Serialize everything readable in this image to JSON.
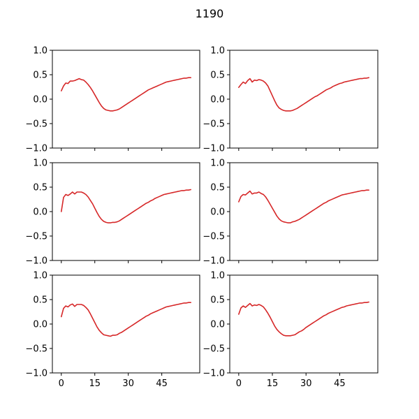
{
  "figure": {
    "title": "1190"
  },
  "chart_data": [
    {
      "type": "line",
      "xlim": [
        -4,
        62
      ],
      "ylim": [
        -1.0,
        1.0
      ],
      "xticks": [
        0,
        15,
        30,
        45
      ],
      "yticks": [
        -1.0,
        -0.5,
        0.0,
        0.5,
        1.0
      ],
      "xtick_labels": [
        "0",
        "15",
        "30",
        "45"
      ],
      "ytick_labels": [
        "−1.0",
        "−0.5",
        "0.0",
        "0.5",
        "1.0"
      ],
      "show_xtick_labels": false,
      "show_ytick_labels": true,
      "color": "#d62728",
      "x": [
        0,
        1,
        2,
        3,
        4,
        5,
        6,
        7,
        8,
        9,
        10,
        11,
        12,
        13,
        14,
        15,
        16,
        17,
        18,
        19,
        20,
        21,
        22,
        23,
        24,
        25,
        26,
        27,
        28,
        29,
        30,
        31,
        32,
        33,
        34,
        35,
        36,
        37,
        38,
        39,
        40,
        41,
        42,
        43,
        44,
        45,
        46,
        47,
        48,
        49,
        50,
        51,
        52,
        53,
        54,
        55,
        56,
        57,
        58
      ],
      "y": [
        0.17,
        0.27,
        0.33,
        0.32,
        0.37,
        0.37,
        0.38,
        0.4,
        0.42,
        0.4,
        0.39,
        0.35,
        0.3,
        0.24,
        0.17,
        0.09,
        0.01,
        -0.07,
        -0.14,
        -0.19,
        -0.22,
        -0.23,
        -0.24,
        -0.24,
        -0.23,
        -0.22,
        -0.2,
        -0.17,
        -0.14,
        -0.11,
        -0.08,
        -0.05,
        -0.02,
        0.01,
        0.04,
        0.07,
        0.1,
        0.13,
        0.16,
        0.19,
        0.21,
        0.23,
        0.25,
        0.27,
        0.29,
        0.31,
        0.33,
        0.35,
        0.36,
        0.37,
        0.38,
        0.39,
        0.4,
        0.41,
        0.42,
        0.43,
        0.43,
        0.44,
        0.44
      ]
    },
    {
      "type": "line",
      "xlim": [
        -4,
        62
      ],
      "ylim": [
        -1.0,
        1.0
      ],
      "xticks": [
        0,
        15,
        30,
        45
      ],
      "yticks": [
        -1.0,
        -0.5,
        0.0,
        0.5,
        1.0
      ],
      "xtick_labels": [
        "0",
        "15",
        "30",
        "45"
      ],
      "ytick_labels": [
        "−1.0",
        "−0.5",
        "0.0",
        "0.5",
        "1.0"
      ],
      "show_xtick_labels": false,
      "show_ytick_labels": true,
      "color": "#d62728",
      "x": [
        0,
        1,
        2,
        3,
        4,
        5,
        6,
        7,
        8,
        9,
        10,
        11,
        12,
        13,
        14,
        15,
        16,
        17,
        18,
        19,
        20,
        21,
        22,
        23,
        24,
        25,
        26,
        27,
        28,
        29,
        30,
        31,
        32,
        33,
        34,
        35,
        36,
        37,
        38,
        39,
        40,
        41,
        42,
        43,
        44,
        45,
        46,
        47,
        48,
        49,
        50,
        51,
        52,
        53,
        54,
        55,
        56,
        57,
        58
      ],
      "y": [
        0.24,
        0.3,
        0.35,
        0.32,
        0.38,
        0.42,
        0.35,
        0.39,
        0.38,
        0.4,
        0.39,
        0.37,
        0.33,
        0.27,
        0.17,
        0.07,
        -0.03,
        -0.12,
        -0.18,
        -0.21,
        -0.23,
        -0.24,
        -0.24,
        -0.24,
        -0.23,
        -0.21,
        -0.19,
        -0.16,
        -0.13,
        -0.1,
        -0.07,
        -0.04,
        -0.01,
        0.02,
        0.05,
        0.07,
        0.1,
        0.13,
        0.16,
        0.19,
        0.21,
        0.23,
        0.26,
        0.28,
        0.3,
        0.32,
        0.33,
        0.35,
        0.36,
        0.37,
        0.38,
        0.39,
        0.4,
        0.41,
        0.42,
        0.42,
        0.43,
        0.43,
        0.44
      ]
    },
    {
      "type": "line",
      "xlim": [
        -4,
        62
      ],
      "ylim": [
        -1.0,
        1.0
      ],
      "xticks": [
        0,
        15,
        30,
        45
      ],
      "yticks": [
        -1.0,
        -0.5,
        0.0,
        0.5,
        1.0
      ],
      "xtick_labels": [
        "0",
        "15",
        "30",
        "45"
      ],
      "ytick_labels": [
        "−1.0",
        "−0.5",
        "0.0",
        "0.5",
        "1.0"
      ],
      "show_xtick_labels": false,
      "show_ytick_labels": true,
      "color": "#d62728",
      "x": [
        0,
        1,
        2,
        3,
        4,
        5,
        6,
        7,
        8,
        9,
        10,
        11,
        12,
        13,
        14,
        15,
        16,
        17,
        18,
        19,
        20,
        21,
        22,
        23,
        24,
        25,
        26,
        27,
        28,
        29,
        30,
        31,
        32,
        33,
        34,
        35,
        36,
        37,
        38,
        39,
        40,
        41,
        42,
        43,
        44,
        45,
        46,
        47,
        48,
        49,
        50,
        51,
        52,
        53,
        54,
        55,
        56,
        57,
        58
      ],
      "y": [
        0.0,
        0.29,
        0.35,
        0.33,
        0.36,
        0.4,
        0.36,
        0.4,
        0.4,
        0.4,
        0.38,
        0.35,
        0.3,
        0.23,
        0.16,
        0.07,
        -0.02,
        -0.1,
        -0.16,
        -0.2,
        -0.22,
        -0.23,
        -0.23,
        -0.22,
        -0.22,
        -0.21,
        -0.19,
        -0.16,
        -0.13,
        -0.1,
        -0.07,
        -0.04,
        -0.01,
        0.02,
        0.05,
        0.08,
        0.11,
        0.14,
        0.17,
        0.19,
        0.22,
        0.24,
        0.27,
        0.29,
        0.31,
        0.33,
        0.35,
        0.36,
        0.37,
        0.38,
        0.39,
        0.4,
        0.41,
        0.42,
        0.43,
        0.43,
        0.44,
        0.44,
        0.45
      ]
    },
    {
      "type": "line",
      "xlim": [
        -4,
        62
      ],
      "ylim": [
        -1.0,
        1.0
      ],
      "xticks": [
        0,
        15,
        30,
        45
      ],
      "yticks": [
        -1.0,
        -0.5,
        0.0,
        0.5,
        1.0
      ],
      "xtick_labels": [
        "0",
        "15",
        "30",
        "45"
      ],
      "ytick_labels": [
        "−1.0",
        "−0.5",
        "0.0",
        "0.5",
        "1.0"
      ],
      "show_xtick_labels": false,
      "show_ytick_labels": true,
      "color": "#d62728",
      "x": [
        0,
        1,
        2,
        3,
        4,
        5,
        6,
        7,
        8,
        9,
        10,
        11,
        12,
        13,
        14,
        15,
        16,
        17,
        18,
        19,
        20,
        21,
        22,
        23,
        24,
        25,
        26,
        27,
        28,
        29,
        30,
        31,
        32,
        33,
        34,
        35,
        36,
        37,
        38,
        39,
        40,
        41,
        42,
        43,
        44,
        45,
        46,
        47,
        48,
        49,
        50,
        51,
        52,
        53,
        54,
        55,
        56,
        57,
        58
      ],
      "y": [
        0.2,
        0.31,
        0.35,
        0.34,
        0.38,
        0.42,
        0.36,
        0.38,
        0.38,
        0.4,
        0.37,
        0.35,
        0.3,
        0.23,
        0.15,
        0.07,
        -0.01,
        -0.09,
        -0.15,
        -0.19,
        -0.21,
        -0.22,
        -0.23,
        -0.23,
        -0.21,
        -0.2,
        -0.18,
        -0.16,
        -0.13,
        -0.1,
        -0.07,
        -0.04,
        -0.01,
        0.02,
        0.05,
        0.08,
        0.11,
        0.14,
        0.17,
        0.19,
        0.22,
        0.24,
        0.26,
        0.28,
        0.3,
        0.32,
        0.34,
        0.35,
        0.36,
        0.37,
        0.38,
        0.39,
        0.4,
        0.41,
        0.42,
        0.43,
        0.43,
        0.44,
        0.44
      ]
    },
    {
      "type": "line",
      "xlim": [
        -4,
        62
      ],
      "ylim": [
        -1.0,
        1.0
      ],
      "xticks": [
        0,
        15,
        30,
        45
      ],
      "yticks": [
        -1.0,
        -0.5,
        0.0,
        0.5,
        1.0
      ],
      "xtick_labels": [
        "0",
        "15",
        "30",
        "45"
      ],
      "ytick_labels": [
        "−1.0",
        "−0.5",
        "0.0",
        "0.5",
        "1.0"
      ],
      "show_xtick_labels": true,
      "show_ytick_labels": true,
      "color": "#d62728",
      "x": [
        0,
        1,
        2,
        3,
        4,
        5,
        6,
        7,
        8,
        9,
        10,
        11,
        12,
        13,
        14,
        15,
        16,
        17,
        18,
        19,
        20,
        21,
        22,
        23,
        24,
        25,
        26,
        27,
        28,
        29,
        30,
        31,
        32,
        33,
        34,
        35,
        36,
        37,
        38,
        39,
        40,
        41,
        42,
        43,
        44,
        45,
        46,
        47,
        48,
        49,
        50,
        51,
        52,
        53,
        54,
        55,
        56,
        57,
        58
      ],
      "y": [
        0.15,
        0.32,
        0.37,
        0.35,
        0.39,
        0.41,
        0.36,
        0.4,
        0.4,
        0.4,
        0.38,
        0.34,
        0.29,
        0.21,
        0.12,
        0.03,
        -0.06,
        -0.13,
        -0.18,
        -0.22,
        -0.23,
        -0.24,
        -0.25,
        -0.23,
        -0.23,
        -0.22,
        -0.19,
        -0.17,
        -0.14,
        -0.11,
        -0.08,
        -0.05,
        -0.02,
        0.01,
        0.04,
        0.07,
        0.1,
        0.13,
        0.16,
        0.18,
        0.21,
        0.23,
        0.25,
        0.27,
        0.29,
        0.31,
        0.33,
        0.35,
        0.36,
        0.37,
        0.38,
        0.39,
        0.4,
        0.41,
        0.42,
        0.43,
        0.43,
        0.44,
        0.44
      ]
    },
    {
      "type": "line",
      "xlim": [
        -4,
        62
      ],
      "ylim": [
        -1.0,
        1.0
      ],
      "xticks": [
        0,
        15,
        30,
        45
      ],
      "yticks": [
        -1.0,
        -0.5,
        0.0,
        0.5,
        1.0
      ],
      "xtick_labels": [
        "0",
        "15",
        "30",
        "45"
      ],
      "ytick_labels": [
        "−1.0",
        "−0.5",
        "0.0",
        "0.5",
        "1.0"
      ],
      "show_xtick_labels": true,
      "show_ytick_labels": true,
      "color": "#d62728",
      "x": [
        0,
        1,
        2,
        3,
        4,
        5,
        6,
        7,
        8,
        9,
        10,
        11,
        12,
        13,
        14,
        15,
        16,
        17,
        18,
        19,
        20,
        21,
        22,
        23,
        24,
        25,
        26,
        27,
        28,
        29,
        30,
        31,
        32,
        33,
        34,
        35,
        36,
        37,
        38,
        39,
        40,
        41,
        42,
        43,
        44,
        45,
        46,
        47,
        48,
        49,
        50,
        51,
        52,
        53,
        54,
        55,
        56,
        57,
        58
      ],
      "y": [
        0.2,
        0.33,
        0.37,
        0.34,
        0.38,
        0.42,
        0.37,
        0.39,
        0.38,
        0.4,
        0.38,
        0.35,
        0.29,
        0.22,
        0.14,
        0.05,
        -0.04,
        -0.11,
        -0.16,
        -0.2,
        -0.23,
        -0.24,
        -0.24,
        -0.24,
        -0.23,
        -0.22,
        -0.19,
        -0.16,
        -0.14,
        -0.11,
        -0.07,
        -0.04,
        -0.01,
        0.02,
        0.05,
        0.08,
        0.11,
        0.14,
        0.17,
        0.19,
        0.22,
        0.24,
        0.26,
        0.28,
        0.3,
        0.32,
        0.34,
        0.35,
        0.37,
        0.38,
        0.39,
        0.4,
        0.41,
        0.42,
        0.43,
        0.43,
        0.44,
        0.44,
        0.45
      ]
    }
  ]
}
